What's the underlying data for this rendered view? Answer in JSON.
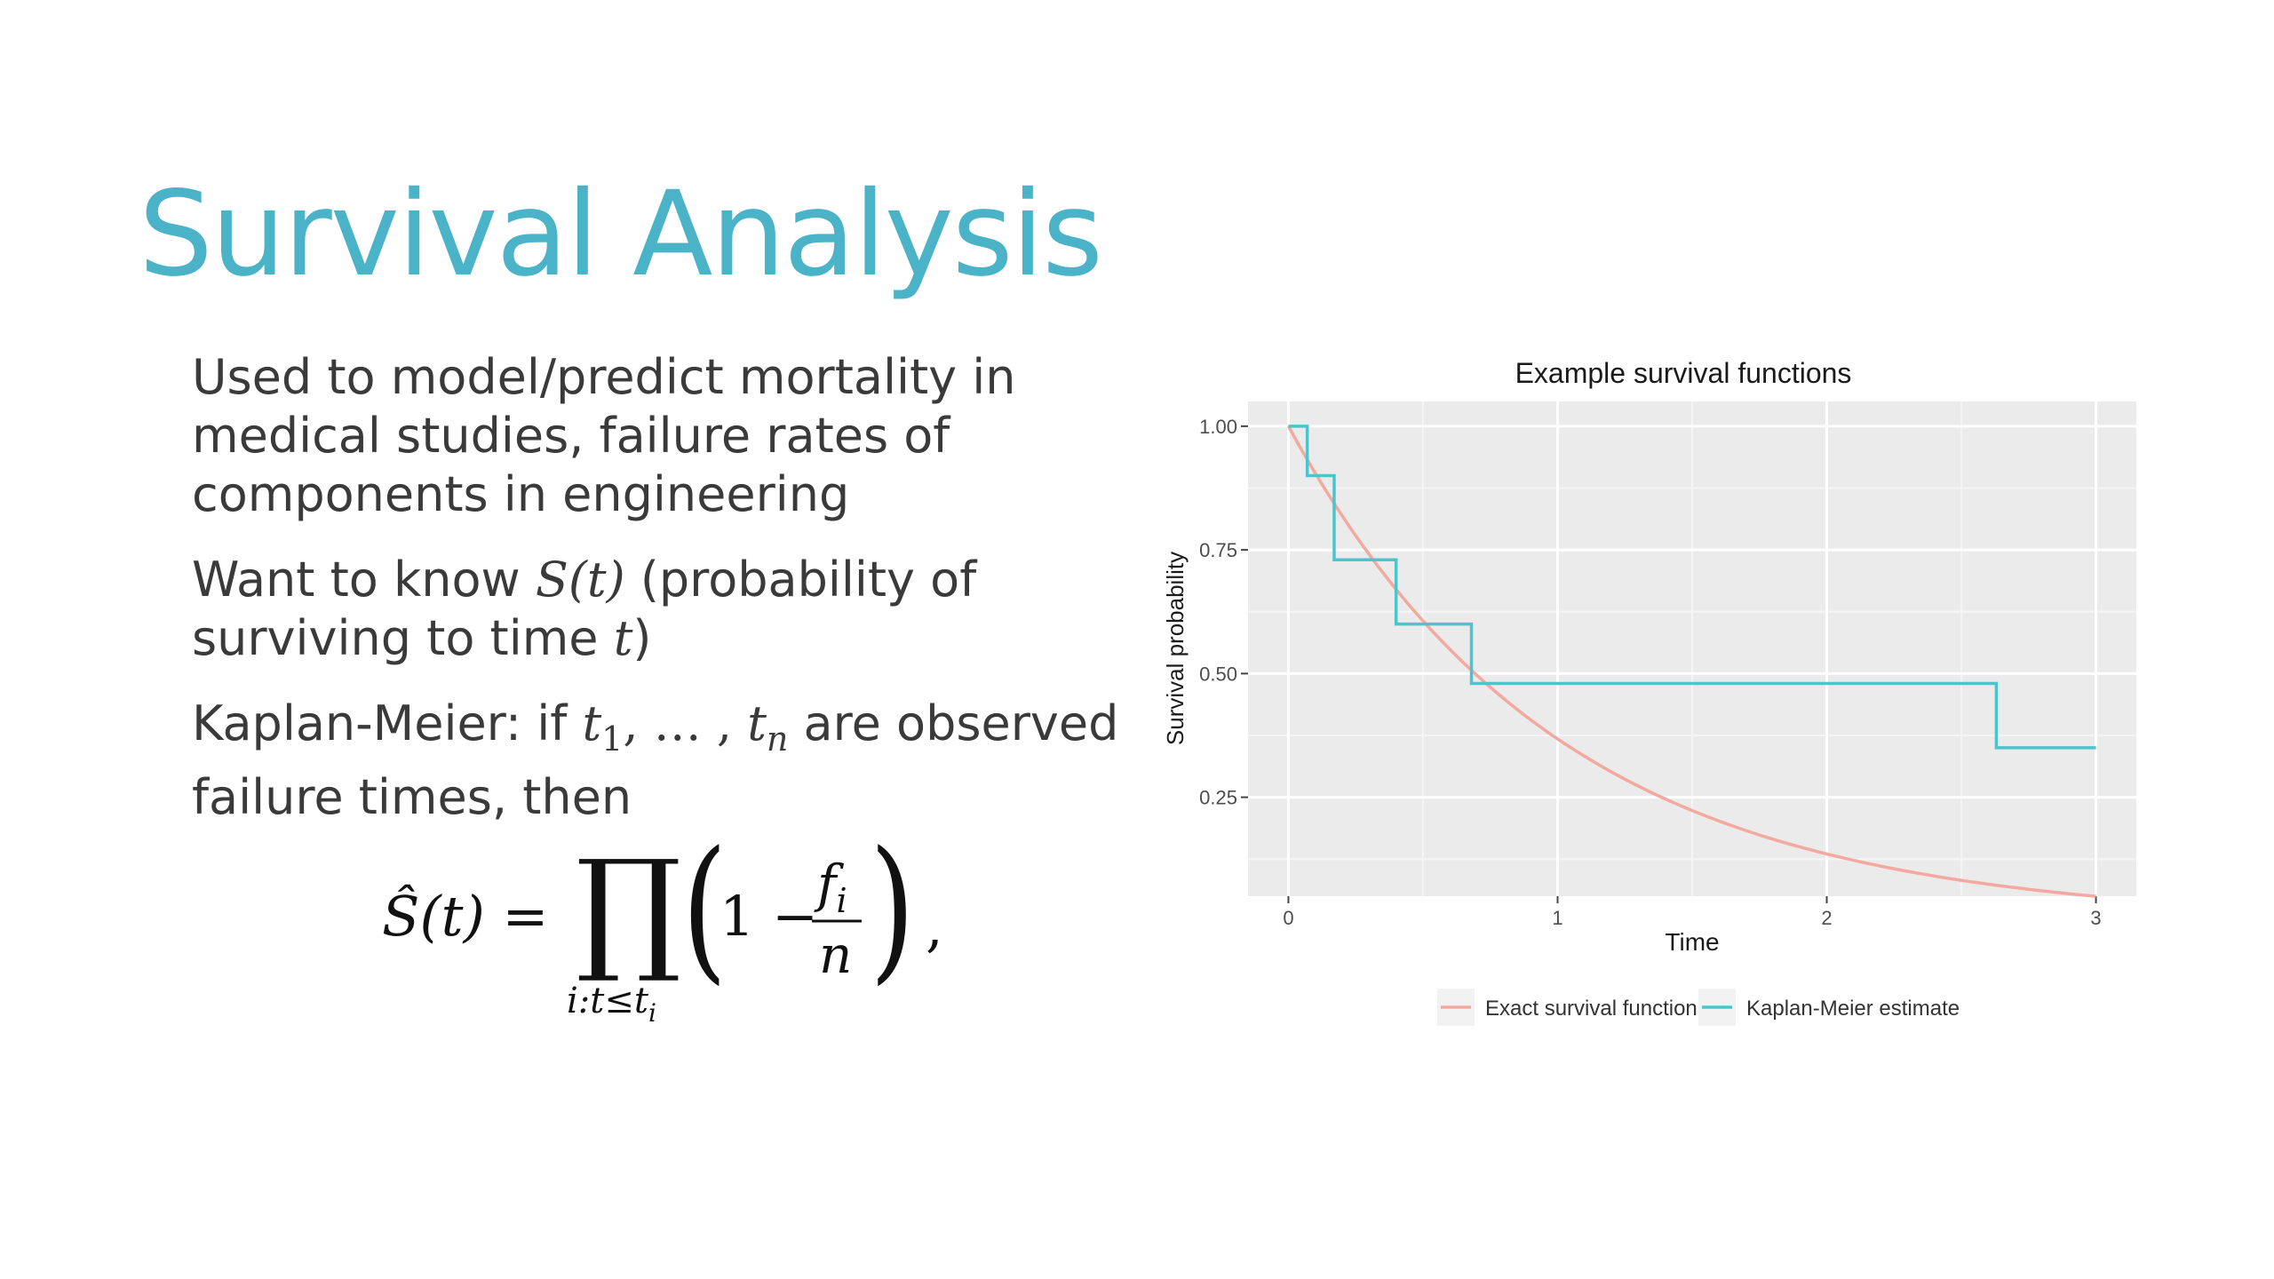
{
  "slide": {
    "title": "Survival Analysis",
    "bullets": [
      {
        "text": "Used to model/predict mortality in medical studies, failure rates of components in engineering"
      },
      {
        "pre": "Want to know ",
        "math": "S(t)",
        "post": " (probability of surviving to time ",
        "math2": "t",
        "post2": ")"
      },
      {
        "pre": "Kaplan-Meier: if ",
        "math_t": "t",
        "sub1": "1",
        "mid": ", … , ",
        "math_t2": "t",
        "subn": "n",
        "post": " are observed failure times, then"
      }
    ],
    "formula": {
      "lhs": "Ŝ(t) =",
      "product": "∏",
      "under": "i:t≤t",
      "under_sub": "i",
      "one_minus": "1 −",
      "numer": "f",
      "numer_sub": "i",
      "denom": "n",
      "trail": ","
    }
  },
  "chart_data": {
    "type": "line",
    "title": "Example survival functions",
    "xlabel": "Time",
    "ylabel": "Survival probability",
    "xlim": [
      -0.15,
      3.15
    ],
    "ylim": [
      0.05,
      1.05
    ],
    "xticks": [
      0,
      1,
      2,
      3
    ],
    "xtick_labels": [
      "0",
      "1",
      "2",
      "3"
    ],
    "yticks": [
      0.25,
      0.5,
      0.75,
      1.0
    ],
    "ytick_labels": [
      "0.25",
      "0.50",
      "0.75",
      "1.00"
    ],
    "grid": true,
    "legend": "bottom",
    "series": [
      {
        "name": "Exact survival function",
        "color": "#f4a9a0",
        "kind": "curve",
        "rate": 1.0,
        "x_range": [
          0,
          3
        ]
      },
      {
        "name": "Kaplan-Meier estimate",
        "color": "#4fc3cb",
        "kind": "step",
        "x": [
          0,
          0.07,
          0.17,
          0.4,
          0.68,
          2.63,
          3.0
        ],
        "y": [
          1.0,
          0.9,
          0.73,
          0.6,
          0.48,
          0.35,
          0.35
        ]
      }
    ]
  }
}
